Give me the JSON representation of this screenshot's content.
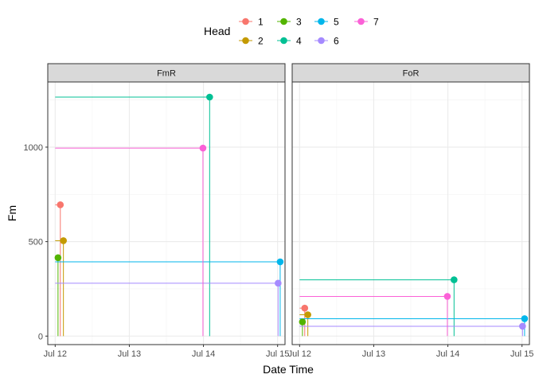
{
  "chart_data": {
    "type": "scatter",
    "xlabel": "Date Time",
    "ylabel": "Fm",
    "x_ticks": [
      "Jul 12",
      "Jul 13",
      "Jul 14",
      "Jul 15"
    ],
    "y_ticks": [
      "0",
      "500",
      "1000"
    ],
    "ylim": [
      -45,
      1345
    ],
    "xlim": [
      "2024-07-11 21:36",
      "2024-07-15 02:24"
    ],
    "grid": true,
    "legend": {
      "title": "Head",
      "position": "top",
      "entries": [
        "1",
        "2",
        "3",
        "4",
        "5",
        "6",
        "7"
      ]
    },
    "colors": {
      "1": "#F8766D",
      "2": "#C49A00",
      "3": "#53B400",
      "4": "#00C094",
      "5": "#00B6EB",
      "6": "#A58AFF",
      "7": "#FB61D7"
    },
    "panels": [
      {
        "label": "FmR",
        "series": [
          {
            "name": "1",
            "x": "2024-07-12 01:40",
            "y": 695
          },
          {
            "name": "2",
            "x": "2024-07-12 02:40",
            "y": 505
          },
          {
            "name": "3",
            "x": "2024-07-12 00:55",
            "y": 415
          },
          {
            "name": "4",
            "x": "2024-07-14 02:00",
            "y": 1265
          },
          {
            "name": "5",
            "x": "2024-07-15 00:50",
            "y": 393
          },
          {
            "name": "6",
            "x": "2024-07-15 00:10",
            "y": 280
          },
          {
            "name": "7",
            "x": "2024-07-13 23:50",
            "y": 995
          }
        ]
      },
      {
        "label": "FoR",
        "series": [
          {
            "name": "1",
            "x": "2024-07-12 01:40",
            "y": 148
          },
          {
            "name": "2",
            "x": "2024-07-12 02:40",
            "y": 113
          },
          {
            "name": "3",
            "x": "2024-07-12 00:55",
            "y": 75
          },
          {
            "name": "4",
            "x": "2024-07-14 02:00",
            "y": 298
          },
          {
            "name": "5",
            "x": "2024-07-15 00:50",
            "y": 92
          },
          {
            "name": "6",
            "x": "2024-07-15 00:10",
            "y": 52
          },
          {
            "name": "7",
            "x": "2024-07-13 23:50",
            "y": 210
          }
        ]
      }
    ]
  }
}
